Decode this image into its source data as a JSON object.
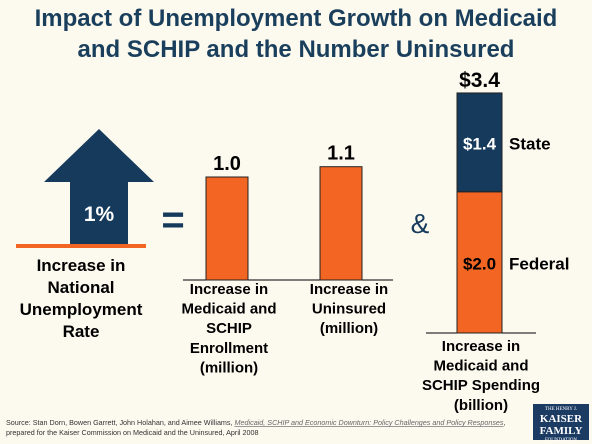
{
  "title": {
    "line1": "Impact of Unemployment Growth on Medicaid",
    "line2": "and SCHIP and the Number Uninsured"
  },
  "arrow": {
    "value_label": "1%",
    "caption": [
      "Increase in",
      "National",
      "Unemployment",
      "Rate"
    ]
  },
  "symbols": {
    "equals": "=",
    "ampersand": "&"
  },
  "chart_data": [
    {
      "type": "bar",
      "categories": [
        "Increase in Medicaid and SCHIP Enrollment (million)",
        "Increase in Uninsured (million)"
      ],
      "category_lines": [
        [
          "Increase in",
          "Medicaid and",
          "SCHIP",
          "Enrollment",
          "(million)"
        ],
        [
          "Increase in",
          "Uninsured",
          "(million)"
        ]
      ],
      "values": [
        1.0,
        1.1
      ],
      "value_labels": [
        "1.0",
        "1.1"
      ],
      "color": "#f26522"
    },
    {
      "type": "bar",
      "stacked": true,
      "categories": [
        "Increase in Medicaid and SCHIP Spending (billion)"
      ],
      "category_lines": [
        "Increase in",
        "Medicaid and",
        "SCHIP Spending",
        "(billion)"
      ],
      "series": [
        {
          "name": "Federal",
          "values": [
            2.0
          ],
          "value_label": "$2.0",
          "color": "#f26522"
        },
        {
          "name": "State",
          "values": [
            1.4
          ],
          "value_label": "$1.4",
          "color": "#153a5b"
        }
      ],
      "total_label": "$3.4"
    }
  ],
  "colors": {
    "navy": "#153a5b",
    "orange": "#f26522",
    "background": "#fcf9ef"
  },
  "source": {
    "prefix": "Source: Stan Dorn, Bowen Garrett, John Holahan, and Aimee Williams, ",
    "italic": "Medicaid, SCHIP and Economic Downturn: Policy Challenges and Policy Responses",
    "suffix": ", prepared for the Kaiser Commission on Medicaid and the Uninsured, April 2008"
  },
  "logo": {
    "line1": "THE HENRY J.",
    "line2": "KAISER FAMILY",
    "line3": "FOUNDATION"
  }
}
